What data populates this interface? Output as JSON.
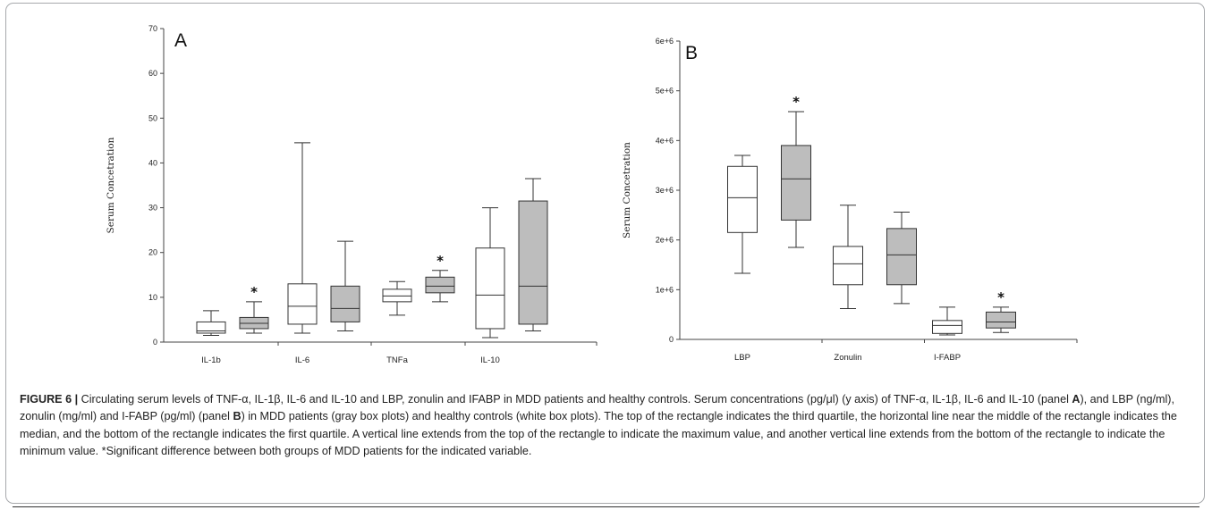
{
  "chart_data": [
    {
      "type": "box",
      "panel_label": "A",
      "ylabel": "Serum Concetration",
      "ylim": [
        0,
        70
      ],
      "yticks": [
        "0",
        "10",
        "20",
        "30",
        "40",
        "50",
        "60",
        "70"
      ],
      "categories": [
        "IL-1b",
        "IL-6",
        "TNFa",
        "IL-10"
      ],
      "series": [
        {
          "group": "healthy controls",
          "fill": "#ffffff",
          "boxes": [
            {
              "category": "IL-1b",
              "min": 1.5,
              "q1": 2,
              "median": 2.5,
              "q3": 4.5,
              "max": 7
            },
            {
              "category": "IL-6",
              "min": 2,
              "q1": 4,
              "median": 8,
              "q3": 13,
              "max": 44.5
            },
            {
              "category": "TNFa",
              "min": 6,
              "q1": 9,
              "median": 10.3,
              "q3": 11.8,
              "max": 13.5
            },
            {
              "category": "IL-10",
              "min": 1,
              "q1": 3,
              "median": 10.5,
              "q3": 21,
              "max": 30
            }
          ]
        },
        {
          "group": "MDD patients",
          "fill": "#bdbdbd",
          "boxes": [
            {
              "category": "IL-1b",
              "min": 2,
              "q1": 3,
              "median": 4.2,
              "q3": 5.5,
              "max": 9,
              "significant": true
            },
            {
              "category": "IL-6",
              "min": 2.5,
              "q1": 4.5,
              "median": 7.5,
              "q3": 12.5,
              "max": 22.5
            },
            {
              "category": "TNFa",
              "min": 9,
              "q1": 11,
              "median": 12.5,
              "q3": 14.5,
              "max": 16,
              "significant": true
            },
            {
              "category": "IL-10",
              "min": 2.5,
              "q1": 4,
              "median": 12.5,
              "q3": 31.5,
              "max": 36.5
            }
          ]
        }
      ]
    },
    {
      "type": "box",
      "panel_label": "B",
      "ylabel": "Serum Concetration",
      "ylim": [
        0,
        6000000
      ],
      "yticks": [
        "0",
        "1e+6",
        "2e+6",
        "3e+6",
        "4e+6",
        "5e+6",
        "6e+6"
      ],
      "categories": [
        "LBP",
        "Zonulin",
        "I-FABP"
      ],
      "series": [
        {
          "group": "healthy controls",
          "fill": "#ffffff",
          "boxes": [
            {
              "category": "LBP",
              "min": 1330000,
              "q1": 2150000,
              "median": 2850000,
              "q3": 3480000,
              "max": 3700000
            },
            {
              "category": "Zonulin",
              "min": 620000,
              "q1": 1100000,
              "median": 1520000,
              "q3": 1870000,
              "max": 2700000
            },
            {
              "category": "I-FABP",
              "min": 90000,
              "q1": 120000,
              "median": 280000,
              "q3": 380000,
              "max": 650000
            }
          ]
        },
        {
          "group": "MDD patients",
          "fill": "#bdbdbd",
          "boxes": [
            {
              "category": "LBP",
              "min": 1850000,
              "q1": 2400000,
              "median": 3230000,
              "q3": 3900000,
              "max": 4580000,
              "significant": true
            },
            {
              "category": "Zonulin",
              "min": 720000,
              "q1": 1100000,
              "median": 1700000,
              "q3": 2230000,
              "max": 2560000
            },
            {
              "category": "I-FABP",
              "min": 140000,
              "q1": 230000,
              "median": 350000,
              "q3": 550000,
              "max": 650000,
              "significant": true
            }
          ]
        }
      ]
    }
  ],
  "significance_marker": "*",
  "caption": {
    "figure_label": "FIGURE 6 |",
    "text_parts": [
      " Circulating serum levels of TNF-α, IL-1β, IL-6 and IL-10 and LBP, zonulin and IFABP in MDD patients and healthy controls. Serum concentrations (pg/μl) (y axis) of TNF-α, IL-1β, IL-6 and IL-10 (panel ",
      "A",
      "), and LBP (ng/ml), zonulin (mg/ml) and I-FABP (pg/ml) (panel ",
      "B",
      ") in MDD patients (gray box plots) and healthy controls (white box plots). The top of the rectangle indicates the third quartile, the horizontal line near the middle of the rectangle indicates the median, and the bottom of the rectangle indicates the first quartile. A vertical line extends from the top of the rectangle to indicate the maximum value, and another vertical line extends from the bottom of the rectangle to indicate the minimum value. *Significant difference between both groups of MDD patients for the indicated variable."
    ]
  }
}
